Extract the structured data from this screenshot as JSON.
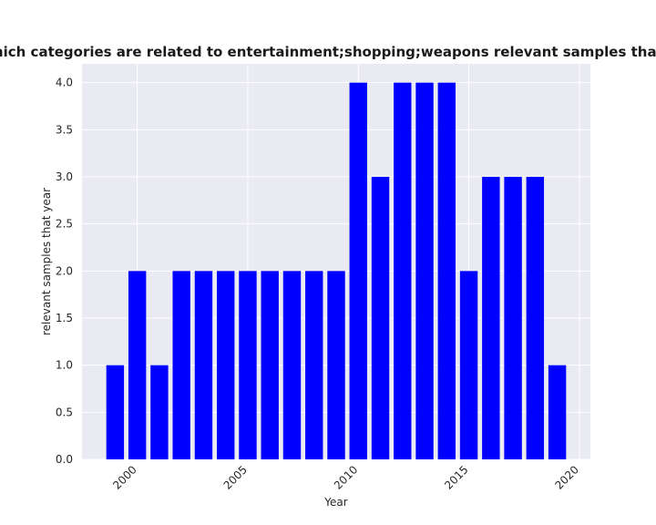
{
  "chart_data": {
    "type": "bar",
    "title": "Number of samples which categories are related to entertainment;shopping;weapons relevant samples that year in privacy policies",
    "xlabel": "Year",
    "ylabel": "relevant samples that year",
    "x": [
      1999,
      2000,
      2001,
      2002,
      2003,
      2004,
      2005,
      2006,
      2007,
      2008,
      2009,
      2010,
      2011,
      2012,
      2013,
      2014,
      2015,
      2016,
      2017,
      2018,
      2019
    ],
    "values": [
      1,
      2,
      1,
      2,
      2,
      2,
      2,
      2,
      2,
      2,
      2,
      4,
      3,
      4,
      4,
      4,
      2,
      3,
      3,
      3,
      1
    ],
    "xlim": [
      1997.5,
      2020.5
    ],
    "ylim": [
      0,
      4.2
    ],
    "xticks": [
      2000,
      2005,
      2010,
      2015,
      2020
    ],
    "yticks": [
      0.0,
      0.5,
      1.0,
      1.5,
      2.0,
      2.5,
      3.0,
      3.5,
      4.0
    ],
    "xtick_labels": [
      "2000",
      "2005",
      "2010",
      "2015",
      "2020"
    ],
    "ytick_labels": [
      "0.0",
      "0.5",
      "1.0",
      "1.5",
      "2.0",
      "2.5",
      "3.0",
      "3.5",
      "4.0"
    ],
    "bar_color": "#0000ff",
    "background_color": "#eaeaf2",
    "grid_color": "#ffffff",
    "grid": true
  }
}
